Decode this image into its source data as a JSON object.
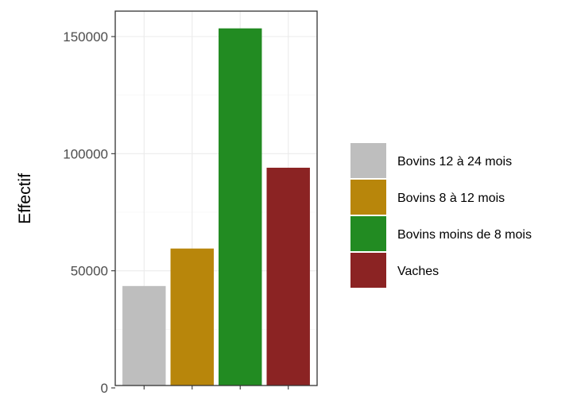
{
  "chart_data": {
    "type": "bar",
    "title": "",
    "xlabel": "",
    "ylabel": "Effectif",
    "ylim": [
      0,
      160000
    ],
    "yticks": [
      0,
      50000,
      100000,
      150000
    ],
    "ytick_labels": [
      "0",
      "50000",
      "100000",
      "150000"
    ],
    "grid": true,
    "legend_position": "right",
    "categories": [
      "Bovins 12 à 24 mois",
      "Bovins 8 à 12 mois",
      "Bovins moins de 8 mois",
      "Vaches"
    ],
    "values": [
      43500,
      59500,
      153500,
      94000
    ],
    "colors": [
      "#bebebe",
      "#b8860b",
      "#228b22",
      "#8b2323"
    ],
    "legend": [
      {
        "label": "Bovins 12 à 24 mois",
        "color": "#bebebe"
      },
      {
        "label": "Bovins 8 à 12 mois",
        "color": "#b8860b"
      },
      {
        "label": "Bovins moins de 8 mois",
        "color": "#228b22"
      },
      {
        "label": "Vaches",
        "color": "#8b2323"
      }
    ]
  }
}
